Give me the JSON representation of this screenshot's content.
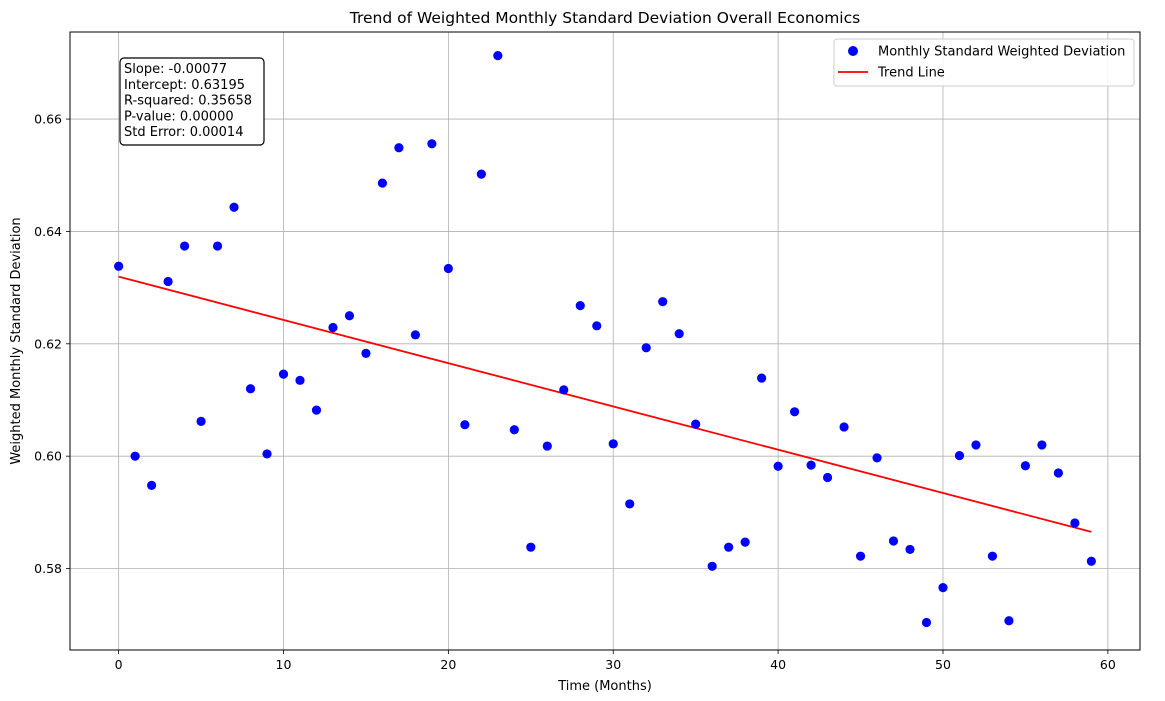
{
  "chart_data": {
    "type": "scatter",
    "title": "Trend of Weighted Monthly Standard Deviation Overall Economics",
    "xlabel": "Time (Months)",
    "ylabel": "Weighted Monthly Standard Deviation",
    "xlim": [
      -2.95,
      61.95
    ],
    "ylim": [
      0.5655,
      0.6755
    ],
    "xticks": [
      0,
      10,
      20,
      30,
      40,
      50,
      60
    ],
    "yticks": [
      0.58,
      0.6,
      0.62,
      0.64,
      0.66
    ],
    "ytick_labels": [
      "0.58",
      "0.60",
      "0.62",
      "0.64",
      "0.66"
    ],
    "grid": true,
    "legend_position": "top-right",
    "series": [
      {
        "name": "Monthly Standard Weighted Deviation",
        "type": "scatter",
        "color": "#0000ff",
        "x": [
          0,
          1,
          2,
          3,
          4,
          5,
          6,
          7,
          8,
          9,
          10,
          11,
          12,
          13,
          14,
          15,
          16,
          17,
          18,
          19,
          20,
          21,
          22,
          23,
          24,
          25,
          26,
          27,
          28,
          29,
          30,
          31,
          32,
          33,
          34,
          35,
          36,
          37,
          38,
          39,
          40,
          41,
          42,
          43,
          44,
          45,
          46,
          47,
          48,
          49,
          50,
          51,
          52,
          53,
          54,
          55,
          56,
          57,
          58,
          59
        ],
        "y": [
          0.6338,
          0.6,
          0.5948,
          0.6311,
          0.6374,
          0.6062,
          0.6374,
          0.6443,
          0.612,
          0.6004,
          0.6146,
          0.6135,
          0.6082,
          0.6229,
          0.625,
          0.6183,
          0.6486,
          0.6549,
          0.6216,
          0.6556,
          0.6334,
          0.6056,
          0.6502,
          0.6713,
          0.6047,
          0.5838,
          0.6018,
          0.6118,
          0.6268,
          0.6232,
          0.6022,
          0.5915,
          0.6193,
          0.6275,
          0.6218,
          0.6057,
          0.5804,
          0.5838,
          0.5847,
          0.6139,
          0.5982,
          0.6079,
          0.5984,
          0.5962,
          0.6052,
          0.5822,
          0.5997,
          0.5849,
          0.5834,
          0.5704,
          0.5766,
          0.6001,
          0.602,
          0.5822,
          0.5707,
          0.5983,
          0.602,
          0.597,
          0.5881,
          0.5813
        ]
      },
      {
        "name": "Trend Line",
        "type": "line",
        "color": "#ff0000",
        "x": [
          0,
          59
        ],
        "y": [
          0.63195,
          0.58652
        ]
      }
    ],
    "annotation": {
      "lines": [
        "Slope: -0.00077",
        "Intercept: 0.63195",
        "R-squared: 0.35658",
        "P-value: 0.00000",
        "Std Error: 0.00014"
      ]
    }
  }
}
